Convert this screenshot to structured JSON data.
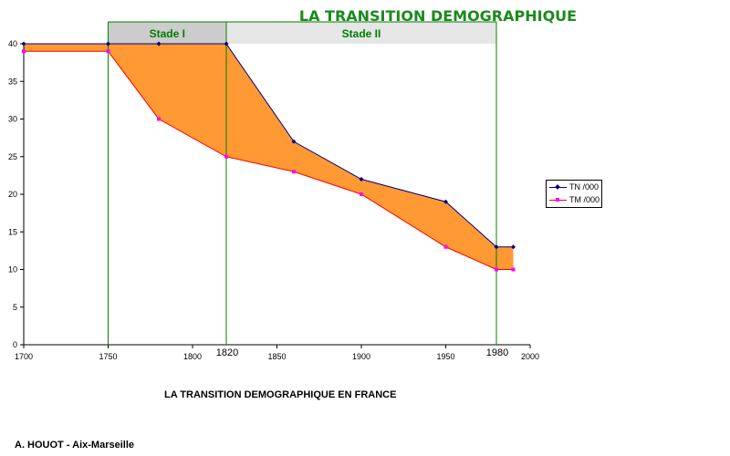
{
  "title": "LA TRANSITION DEMOGRAPHIQUE",
  "subtitle": "LA TRANSITION DEMOGRAPHIQUE EN FRANCE",
  "author": "A. HOUOT - Aix-Marseille",
  "colors": {
    "title": "#1b8a1b",
    "tn_line": "#000080",
    "tm_line": "#ff0000",
    "tm_marker": "#ff00ff",
    "fill": "#ff9933",
    "stage_lines": "#008000",
    "stage_header_1": "#cccccc",
    "stage_header_2": "#e6e6e6"
  },
  "chart_data": {
    "type": "area",
    "xlim": [
      1700,
      2000
    ],
    "ylim": [
      0,
      40
    ],
    "x_ticks": [
      1700,
      1750,
      1800,
      1850,
      1900,
      1950,
      2000
    ],
    "y_ticks": [
      0,
      5,
      10,
      15,
      20,
      25,
      30,
      35,
      40
    ],
    "grid": false,
    "legend_position": "right",
    "series": [
      {
        "name": "TN /000",
        "points": [
          [
            1700,
            40
          ],
          [
            1750,
            40
          ],
          [
            1780,
            40
          ],
          [
            1820,
            40
          ],
          [
            1860,
            27
          ],
          [
            1900,
            22
          ],
          [
            1950,
            19
          ],
          [
            1980,
            13
          ],
          [
            1990,
            13
          ]
        ]
      },
      {
        "name": "TM /000",
        "points": [
          [
            1700,
            39
          ],
          [
            1750,
            39
          ],
          [
            1780,
            30
          ],
          [
            1820,
            25
          ],
          [
            1860,
            23
          ],
          [
            1900,
            20
          ],
          [
            1950,
            13
          ],
          [
            1980,
            10
          ],
          [
            1990,
            10
          ]
        ]
      }
    ],
    "stages": [
      {
        "label": "Stade I",
        "start": 1750,
        "end": 1820
      },
      {
        "label": "Stade II",
        "start": 1820,
        "end": 1980
      }
    ],
    "stage_boundary_labels": [
      {
        "year": 1820,
        "label": "1820"
      },
      {
        "year": 1980,
        "label": "1980"
      }
    ]
  }
}
